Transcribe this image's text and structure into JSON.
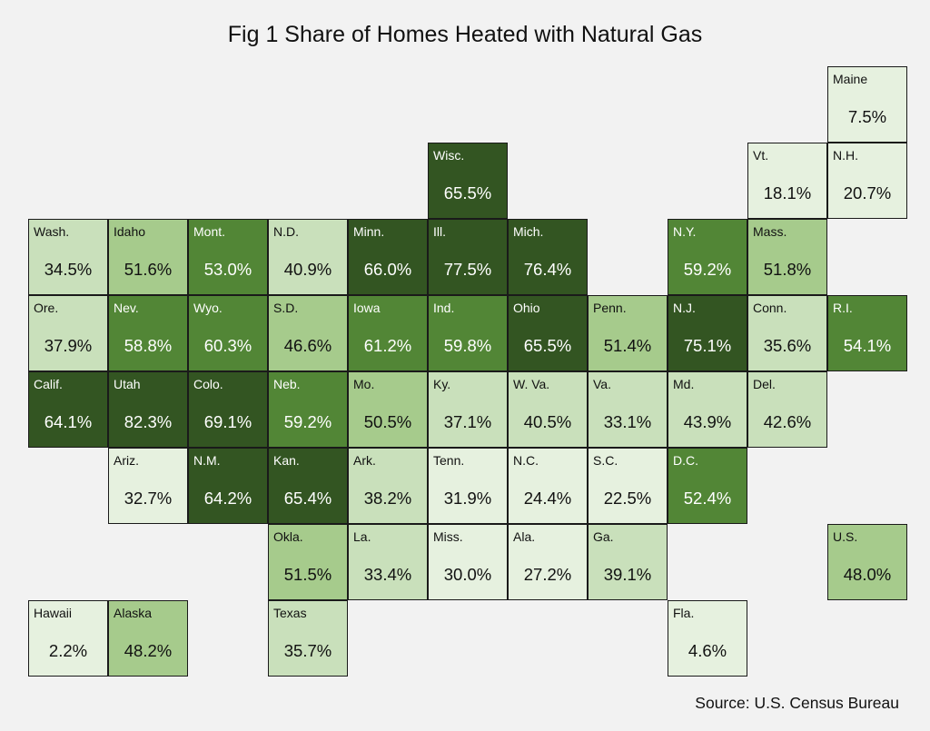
{
  "chart_data": {
    "type": "heatmap",
    "title": "Fig 1 Share of Homes Heated with Natural Gas",
    "source": "Source: U.S. Census Bureau",
    "unit": "%",
    "tiles": [
      {
        "label": "Maine",
        "value": 7.5,
        "row": 0,
        "col": 10
      },
      {
        "label": "Wisc.",
        "value": 65.5,
        "row": 1,
        "col": 5
      },
      {
        "label": "Vt.",
        "value": 18.1,
        "row": 1,
        "col": 9
      },
      {
        "label": "N.H.",
        "value": 20.7,
        "row": 1,
        "col": 10
      },
      {
        "label": "Wash.",
        "value": 34.5,
        "row": 2,
        "col": 0
      },
      {
        "label": "Idaho",
        "value": 51.6,
        "row": 2,
        "col": 1
      },
      {
        "label": "Mont.",
        "value": 53.0,
        "row": 2,
        "col": 2
      },
      {
        "label": "N.D.",
        "value": 40.9,
        "row": 2,
        "col": 3
      },
      {
        "label": "Minn.",
        "value": 66.0,
        "row": 2,
        "col": 4
      },
      {
        "label": "Ill.",
        "value": 77.5,
        "row": 2,
        "col": 5
      },
      {
        "label": "Mich.",
        "value": 76.4,
        "row": 2,
        "col": 6
      },
      {
        "label": "N.Y.",
        "value": 59.2,
        "row": 2,
        "col": 8
      },
      {
        "label": "Mass.",
        "value": 51.8,
        "row": 2,
        "col": 9
      },
      {
        "label": "Ore.",
        "value": 37.9,
        "row": 3,
        "col": 0
      },
      {
        "label": "Nev.",
        "value": 58.8,
        "row": 3,
        "col": 1
      },
      {
        "label": "Wyo.",
        "value": 60.3,
        "row": 3,
        "col": 2
      },
      {
        "label": "S.D.",
        "value": 46.6,
        "row": 3,
        "col": 3
      },
      {
        "label": "Iowa",
        "value": 61.2,
        "row": 3,
        "col": 4
      },
      {
        "label": "Ind.",
        "value": 59.8,
        "row": 3,
        "col": 5
      },
      {
        "label": "Ohio",
        "value": 65.5,
        "row": 3,
        "col": 6
      },
      {
        "label": "Penn.",
        "value": 51.4,
        "row": 3,
        "col": 7
      },
      {
        "label": "N.J.",
        "value": 75.1,
        "row": 3,
        "col": 8
      },
      {
        "label": "Conn.",
        "value": 35.6,
        "row": 3,
        "col": 9
      },
      {
        "label": "R.I.",
        "value": 54.1,
        "row": 3,
        "col": 10
      },
      {
        "label": "Calif.",
        "value": 64.1,
        "row": 4,
        "col": 0
      },
      {
        "label": "Utah",
        "value": 82.3,
        "row": 4,
        "col": 1
      },
      {
        "label": "Colo.",
        "value": 69.1,
        "row": 4,
        "col": 2
      },
      {
        "label": "Neb.",
        "value": 59.2,
        "row": 4,
        "col": 3
      },
      {
        "label": "Mo.",
        "value": 50.5,
        "row": 4,
        "col": 4
      },
      {
        "label": "Ky.",
        "value": 37.1,
        "row": 4,
        "col": 5
      },
      {
        "label": "W. Va.",
        "value": 40.5,
        "row": 4,
        "col": 6
      },
      {
        "label": "Va.",
        "value": 33.1,
        "row": 4,
        "col": 7
      },
      {
        "label": "Md.",
        "value": 43.9,
        "row": 4,
        "col": 8
      },
      {
        "label": "Del.",
        "value": 42.6,
        "row": 4,
        "col": 9
      },
      {
        "label": "Ariz.",
        "value": 32.7,
        "row": 5,
        "col": 1
      },
      {
        "label": "N.M.",
        "value": 64.2,
        "row": 5,
        "col": 2
      },
      {
        "label": "Kan.",
        "value": 65.4,
        "row": 5,
        "col": 3
      },
      {
        "label": "Ark.",
        "value": 38.2,
        "row": 5,
        "col": 4
      },
      {
        "label": "Tenn.",
        "value": 31.9,
        "row": 5,
        "col": 5
      },
      {
        "label": "N.C.",
        "value": 24.4,
        "row": 5,
        "col": 6
      },
      {
        "label": "S.C.",
        "value": 22.5,
        "row": 5,
        "col": 7
      },
      {
        "label": "D.C.",
        "value": 52.4,
        "row": 5,
        "col": 8
      },
      {
        "label": "Okla.",
        "value": 51.5,
        "row": 6,
        "col": 3
      },
      {
        "label": "La.",
        "value": 33.4,
        "row": 6,
        "col": 4
      },
      {
        "label": "Miss.",
        "value": 30.0,
        "row": 6,
        "col": 5
      },
      {
        "label": "Ala.",
        "value": 27.2,
        "row": 6,
        "col": 6
      },
      {
        "label": "Ga.",
        "value": 39.1,
        "row": 6,
        "col": 7
      },
      {
        "label": "U.S.",
        "value": 48.0,
        "row": 6,
        "col": 10
      },
      {
        "label": "Hawaii",
        "value": 2.2,
        "row": 7,
        "col": 0
      },
      {
        "label": "Alaska",
        "value": 48.2,
        "row": 7,
        "col": 1
      },
      {
        "label": "Texas",
        "value": 35.7,
        "row": 7,
        "col": 3
      },
      {
        "label": "Fla.",
        "value": 4.6,
        "row": 7,
        "col": 8
      }
    ]
  }
}
